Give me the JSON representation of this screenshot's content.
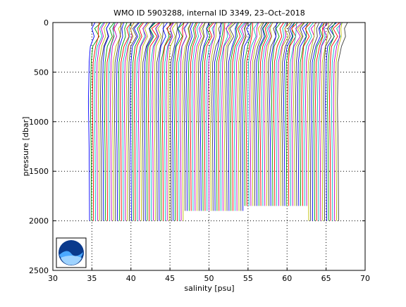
{
  "chart_data": {
    "type": "line",
    "title": "WMO ID 5903288, internal ID 3349, 23–Oct–2018",
    "xlabel": "salinity [psu]",
    "ylabel": "pressure [dbar]",
    "xlim": [
      30,
      70
    ],
    "ylim": [
      0,
      2500
    ],
    "y_reversed": true,
    "grid": "dotted",
    "xticks": [
      30,
      35,
      40,
      45,
      50,
      55,
      60,
      65,
      70
    ],
    "xtick_labels": [
      "30",
      "35",
      "40",
      "45",
      "50",
      "55",
      "60",
      "65",
      "70"
    ],
    "yticks": [
      0,
      500,
      1000,
      1500,
      2000,
      2500
    ],
    "ytick_labels": [
      "0",
      "500",
      "1000",
      "1500",
      "2000",
      "2500"
    ],
    "profile_colors": [
      "#0000ff",
      "#00a000",
      "#ff0000",
      "#00bfbf",
      "#bf00bf",
      "#bfbf00",
      "#404040"
    ],
    "profiles": {
      "count": 126,
      "first_offset_salinity": 34.8,
      "last_offset_salinity": 66.7,
      "max_pressure": [
        2000,
        1900,
        1850,
        2000
      ],
      "surface_depth_dbar": 300
    },
    "logo": "noaa-logo"
  }
}
